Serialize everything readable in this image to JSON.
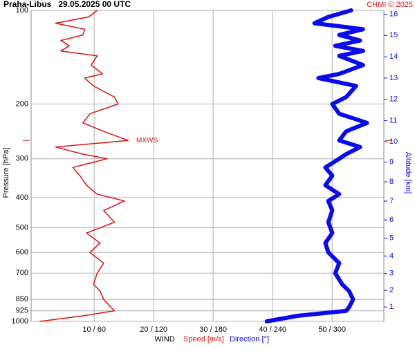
{
  "chart_data": {
    "type": "profile",
    "title": "Praha-Libus   29.05.2025 00 UTC",
    "credit": "CHMI © 2025",
    "y_label": "Pressure [hPa]",
    "y2_label": "Altitude [km]",
    "x_label": "WIND",
    "y": [
      100,
      105,
      110,
      115,
      120,
      125,
      130,
      135,
      140,
      150,
      160,
      165,
      175,
      190,
      200,
      215,
      230,
      245,
      262,
      275,
      290,
      300,
      320,
      340,
      365,
      390,
      410,
      440,
      480,
      520,
      560,
      600,
      650,
      700,
      760,
      800,
      850,
      900,
      925,
      960,
      1000
    ],
    "ylim": [
      100,
      1000
    ],
    "ylog": true,
    "yticks": [
      100,
      200,
      300,
      400,
      500,
      600,
      700,
      850,
      925,
      1000
    ],
    "y2ticks": [
      1,
      2,
      3,
      4,
      5,
      6,
      7,
      8,
      9,
      10,
      11,
      12,
      13,
      14,
      15,
      16
    ],
    "xlim": [
      -0.6,
      58.7
    ],
    "x2lim": [
      -3.5,
      352
    ],
    "xticks": [
      {
        "value": 10,
        "label": "10 / 60"
      },
      {
        "value": 20,
        "label": "20 / 120"
      },
      {
        "value": 30,
        "label": "30 / 180"
      },
      {
        "value": 40,
        "label": "40 / 240"
      },
      {
        "value": 50,
        "label": "50 / 300"
      }
    ],
    "grid": true,
    "series": [
      {
        "name": "Speed [m/s]",
        "color": "#e01010",
        "width": 1.5,
        "values": [
          10.5,
          9.1,
          3.5,
          8.4,
          8.1,
          4.4,
          5.8,
          4.4,
          10.5,
          9.5,
          11.4,
          8.4,
          9.9,
          13.4,
          14,
          9.3,
          8.1,
          11.6,
          15.7,
          3.5,
          8.1,
          12.2,
          6.4,
          7.6,
          8.7,
          10.5,
          15.1,
          11.6,
          13.4,
          8.7,
          11,
          9.3,
          11.6,
          10.5,
          9.9,
          11,
          11.6,
          12.8,
          13.4,
          8.1,
          0.9
        ]
      },
      {
        "name": "Direction [°]",
        "color": "#0a0af0",
        "width": 6,
        "axis": "x2",
        "values": [
          319,
          296,
          282,
          331,
          307,
          328,
          303,
          331,
          307,
          331,
          307,
          286,
          324,
          314,
          300,
          307,
          335,
          314,
          307,
          328,
          314,
          307,
          293,
          300,
          293,
          307,
          296,
          300,
          296,
          300,
          293,
          296,
          307,
          303,
          310,
          317,
          321,
          317,
          314,
          265,
          234
        ]
      }
    ],
    "annotations": [
      {
        "text": "MXWS",
        "y": 262
      }
    ]
  }
}
